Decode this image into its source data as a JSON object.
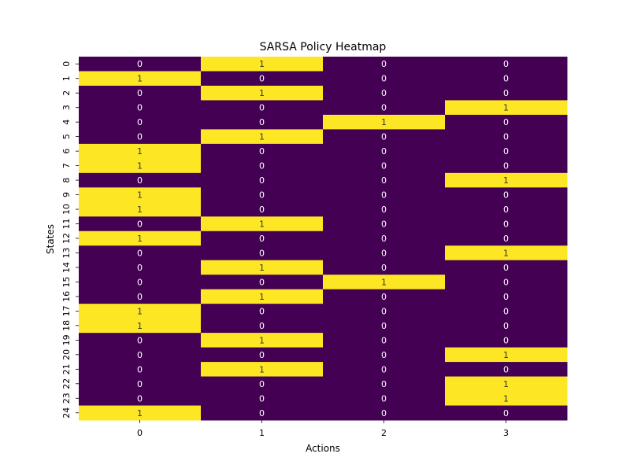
{
  "chart_data": {
    "type": "heatmap",
    "title": "SARSA Policy Heatmap",
    "xlabel": "Actions",
    "ylabel": "States",
    "x_categories": [
      "0",
      "1",
      "2",
      "3"
    ],
    "y_categories": [
      "0",
      "1",
      "2",
      "3",
      "4",
      "5",
      "6",
      "7",
      "8",
      "9",
      "10",
      "11",
      "12",
      "13",
      "14",
      "15",
      "16",
      "17",
      "18",
      "19",
      "20",
      "21",
      "22",
      "23",
      "24"
    ],
    "values": [
      [
        0,
        1,
        0,
        0
      ],
      [
        1,
        0,
        0,
        0
      ],
      [
        0,
        1,
        0,
        0
      ],
      [
        0,
        0,
        0,
        1
      ],
      [
        0,
        0,
        1,
        0
      ],
      [
        0,
        1,
        0,
        0
      ],
      [
        1,
        0,
        0,
        0
      ],
      [
        1,
        0,
        0,
        0
      ],
      [
        0,
        0,
        0,
        1
      ],
      [
        1,
        0,
        0,
        0
      ],
      [
        1,
        0,
        0,
        0
      ],
      [
        0,
        1,
        0,
        0
      ],
      [
        1,
        0,
        0,
        0
      ],
      [
        0,
        0,
        0,
        1
      ],
      [
        0,
        1,
        0,
        0
      ],
      [
        0,
        0,
        1,
        0
      ],
      [
        0,
        1,
        0,
        0
      ],
      [
        1,
        0,
        0,
        0
      ],
      [
        1,
        0,
        0,
        0
      ],
      [
        0,
        1,
        0,
        0
      ],
      [
        0,
        0,
        0,
        1
      ],
      [
        0,
        1,
        0,
        0
      ],
      [
        0,
        0,
        0,
        1
      ],
      [
        0,
        0,
        0,
        1
      ],
      [
        1,
        0,
        0,
        0
      ]
    ],
    "colormap": {
      "0": "#440154",
      "1": "#fde725"
    },
    "annotation_colors": {
      "0": "#ffffff",
      "1": "#333333"
    },
    "value_range": [
      0,
      1
    ],
    "grid": false
  }
}
